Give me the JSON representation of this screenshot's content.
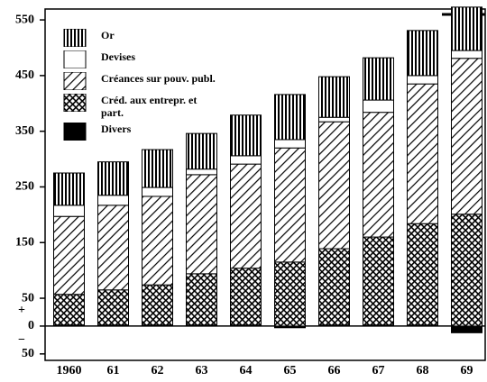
{
  "chart_data": {
    "type": "stacked-bar",
    "categories": [
      "1960",
      "61",
      "62",
      "63",
      "64",
      "65",
      "66",
      "67",
      "68",
      "69"
    ],
    "series": [
      {
        "name": "Divers",
        "color": "#000000",
        "pattern": "solid",
        "values": [
          2,
          2,
          2,
          2,
          2,
          -3,
          2,
          2,
          2,
          -12
        ]
      },
      {
        "name": "Créd. aux entrepr. et part.",
        "color": "#000000",
        "pattern": "crosshatch",
        "values": [
          55,
          63,
          72,
          92,
          102,
          115,
          137,
          158,
          182,
          201
        ]
      },
      {
        "name": "Créances sur pouv. publ.",
        "color": "#000000",
        "pattern": "diagonal",
        "values": [
          140,
          152,
          159,
          178,
          187,
          205,
          228,
          224,
          251,
          280
        ]
      },
      {
        "name": "Devises",
        "color": "#ffffff",
        "pattern": "solid",
        "values": [
          20,
          18,
          16,
          10,
          15,
          15,
          8,
          22,
          15,
          14
        ]
      },
      {
        "name": "Or",
        "color": "#000000",
        "pattern": "vertical",
        "values": [
          58,
          60,
          68,
          64,
          73,
          81,
          73,
          76,
          81,
          78
        ]
      }
    ],
    "legend_order": [
      "Or",
      "Devises",
      "Créances sur pouv. publ.",
      "Créd. aux entrepr. et part.",
      "Divers"
    ],
    "ylim": [
      -60,
      575
    ],
    "yticks": [
      {
        "value": -50,
        "label": "50"
      },
      0,
      50,
      150,
      250,
      350,
      450,
      550
    ],
    "annotations": [
      "+",
      "−"
    ],
    "legend": "top-left"
  }
}
